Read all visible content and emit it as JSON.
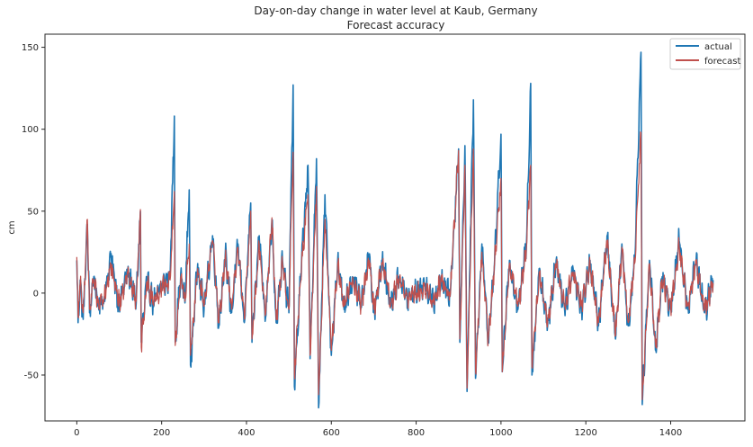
{
  "chart_data": {
    "type": "line",
    "title": "Day-on-day change in water level at Kaub, Germany",
    "subtitle": "Forecast accuracy",
    "xlabel": "",
    "ylabel": "cm",
    "xlim": [
      -75,
      1575
    ],
    "ylim": [
      -78,
      158
    ],
    "xticks": [
      0,
      200,
      400,
      600,
      800,
      1000,
      1200,
      1400
    ],
    "yticks": [
      -50,
      0,
      50,
      100,
      150
    ],
    "grid": false,
    "legend_position": "top-right",
    "colors": {
      "actual": "#1f77b4",
      "forecast": "#c0504d"
    },
    "n_points": 1501,
    "series": [
      {
        "name": "actual",
        "anchors": [
          [
            0,
            20
          ],
          [
            3,
            -18
          ],
          [
            8,
            8
          ],
          [
            15,
            -16
          ],
          [
            25,
            42
          ],
          [
            30,
            -12
          ],
          [
            40,
            10
          ],
          [
            50,
            -8
          ],
          [
            65,
            -2
          ],
          [
            80,
            22
          ],
          [
            100,
            -8
          ],
          [
            120,
            14
          ],
          [
            140,
            -6
          ],
          [
            150,
            50
          ],
          [
            152,
            -30
          ],
          [
            165,
            8
          ],
          [
            180,
            -6
          ],
          [
            200,
            4
          ],
          [
            220,
            10
          ],
          [
            230,
            108
          ],
          [
            232,
            -30
          ],
          [
            245,
            12
          ],
          [
            255,
            -6
          ],
          [
            265,
            63
          ],
          [
            268,
            -44
          ],
          [
            285,
            18
          ],
          [
            300,
            -10
          ],
          [
            320,
            35
          ],
          [
            335,
            -20
          ],
          [
            350,
            24
          ],
          [
            365,
            -12
          ],
          [
            380,
            30
          ],
          [
            395,
            -18
          ],
          [
            410,
            55
          ],
          [
            413,
            -30
          ],
          [
            430,
            35
          ],
          [
            445,
            -15
          ],
          [
            460,
            45
          ],
          [
            470,
            -18
          ],
          [
            485,
            20
          ],
          [
            500,
            -12
          ],
          [
            510,
            127
          ],
          [
            513,
            -57
          ],
          [
            530,
            20
          ],
          [
            545,
            78
          ],
          [
            550,
            -40
          ],
          [
            565,
            82
          ],
          [
            570,
            -70
          ],
          [
            585,
            60
          ],
          [
            600,
            -38
          ],
          [
            615,
            20
          ],
          [
            630,
            -10
          ],
          [
            650,
            10
          ],
          [
            670,
            -8
          ],
          [
            690,
            24
          ],
          [
            700,
            -12
          ],
          [
            720,
            20
          ],
          [
            740,
            -8
          ],
          [
            760,
            10
          ],
          [
            780,
            -4
          ],
          [
            800,
            0
          ],
          [
            820,
            6
          ],
          [
            840,
            -6
          ],
          [
            860,
            8
          ],
          [
            880,
            -2
          ],
          [
            900,
            88
          ],
          [
            903,
            -30
          ],
          [
            915,
            90
          ],
          [
            920,
            -60
          ],
          [
            935,
            118
          ],
          [
            940,
            -52
          ],
          [
            955,
            30
          ],
          [
            970,
            -30
          ],
          [
            985,
            20
          ],
          [
            1000,
            97
          ],
          [
            1003,
            -48
          ],
          [
            1020,
            20
          ],
          [
            1040,
            -10
          ],
          [
            1060,
            30
          ],
          [
            1070,
            128
          ],
          [
            1073,
            -50
          ],
          [
            1090,
            15
          ],
          [
            1110,
            -20
          ],
          [
            1130,
            20
          ],
          [
            1150,
            -10
          ],
          [
            1170,
            15
          ],
          [
            1190,
            -10
          ],
          [
            1210,
            20
          ],
          [
            1230,
            -20
          ],
          [
            1250,
            35
          ],
          [
            1270,
            -28
          ],
          [
            1285,
            30
          ],
          [
            1300,
            -20
          ],
          [
            1315,
            20
          ],
          [
            1330,
            147
          ],
          [
            1333,
            -68
          ],
          [
            1350,
            20
          ],
          [
            1365,
            -35
          ],
          [
            1380,
            10
          ],
          [
            1400,
            -10
          ],
          [
            1420,
            32
          ],
          [
            1440,
            -10
          ],
          [
            1460,
            20
          ],
          [
            1480,
            -12
          ],
          [
            1500,
            8
          ]
        ]
      },
      {
        "name": "forecast",
        "anchors": [
          [
            0,
            22
          ],
          [
            3,
            -14
          ],
          [
            8,
            6
          ],
          [
            15,
            -12
          ],
          [
            25,
            45
          ],
          [
            30,
            -10
          ],
          [
            40,
            8
          ],
          [
            50,
            -6
          ],
          [
            65,
            -2
          ],
          [
            80,
            18
          ],
          [
            100,
            -6
          ],
          [
            120,
            12
          ],
          [
            140,
            -5
          ],
          [
            150,
            51
          ],
          [
            152,
            -33
          ],
          [
            165,
            7
          ],
          [
            180,
            -5
          ],
          [
            200,
            3
          ],
          [
            220,
            8
          ],
          [
            230,
            62
          ],
          [
            232,
            -32
          ],
          [
            245,
            10
          ],
          [
            255,
            -5
          ],
          [
            265,
            30
          ],
          [
            268,
            -38
          ],
          [
            285,
            15
          ],
          [
            300,
            -8
          ],
          [
            320,
            32
          ],
          [
            335,
            -18
          ],
          [
            350,
            22
          ],
          [
            365,
            -10
          ],
          [
            380,
            28
          ],
          [
            395,
            -16
          ],
          [
            410,
            50
          ],
          [
            413,
            -28
          ],
          [
            430,
            30
          ],
          [
            445,
            -13
          ],
          [
            460,
            46
          ],
          [
            470,
            -16
          ],
          [
            485,
            18
          ],
          [
            500,
            -10
          ],
          [
            510,
            86
          ],
          [
            513,
            -50
          ],
          [
            530,
            18
          ],
          [
            545,
            60
          ],
          [
            550,
            -38
          ],
          [
            565,
            65
          ],
          [
            570,
            -62
          ],
          [
            585,
            45
          ],
          [
            600,
            -35
          ],
          [
            615,
            18
          ],
          [
            630,
            -8
          ],
          [
            650,
            8
          ],
          [
            670,
            -7
          ],
          [
            690,
            20
          ],
          [
            700,
            -10
          ],
          [
            720,
            18
          ],
          [
            740,
            -7
          ],
          [
            760,
            8
          ],
          [
            780,
            -3
          ],
          [
            800,
            0
          ],
          [
            820,
            5
          ],
          [
            840,
            -5
          ],
          [
            860,
            7
          ],
          [
            880,
            -2
          ],
          [
            900,
            87
          ],
          [
            903,
            -28
          ],
          [
            915,
            78
          ],
          [
            920,
            -58
          ],
          [
            935,
            88
          ],
          [
            940,
            -48
          ],
          [
            955,
            25
          ],
          [
            970,
            -28
          ],
          [
            985,
            18
          ],
          [
            1000,
            70
          ],
          [
            1003,
            -48
          ],
          [
            1020,
            18
          ],
          [
            1040,
            -8
          ],
          [
            1060,
            28
          ],
          [
            1070,
            78
          ],
          [
            1073,
            -45
          ],
          [
            1090,
            13
          ],
          [
            1110,
            -18
          ],
          [
            1130,
            18
          ],
          [
            1150,
            -8
          ],
          [
            1170,
            13
          ],
          [
            1190,
            -8
          ],
          [
            1210,
            18
          ],
          [
            1230,
            -18
          ],
          [
            1250,
            32
          ],
          [
            1270,
            -26
          ],
          [
            1285,
            28
          ],
          [
            1300,
            -18
          ],
          [
            1315,
            18
          ],
          [
            1330,
            98
          ],
          [
            1333,
            -65
          ],
          [
            1350,
            18
          ],
          [
            1365,
            -33
          ],
          [
            1380,
            8
          ],
          [
            1400,
            -8
          ],
          [
            1420,
            28
          ],
          [
            1440,
            -8
          ],
          [
            1460,
            18
          ],
          [
            1480,
            -10
          ],
          [
            1500,
            6
          ]
        ]
      }
    ]
  }
}
